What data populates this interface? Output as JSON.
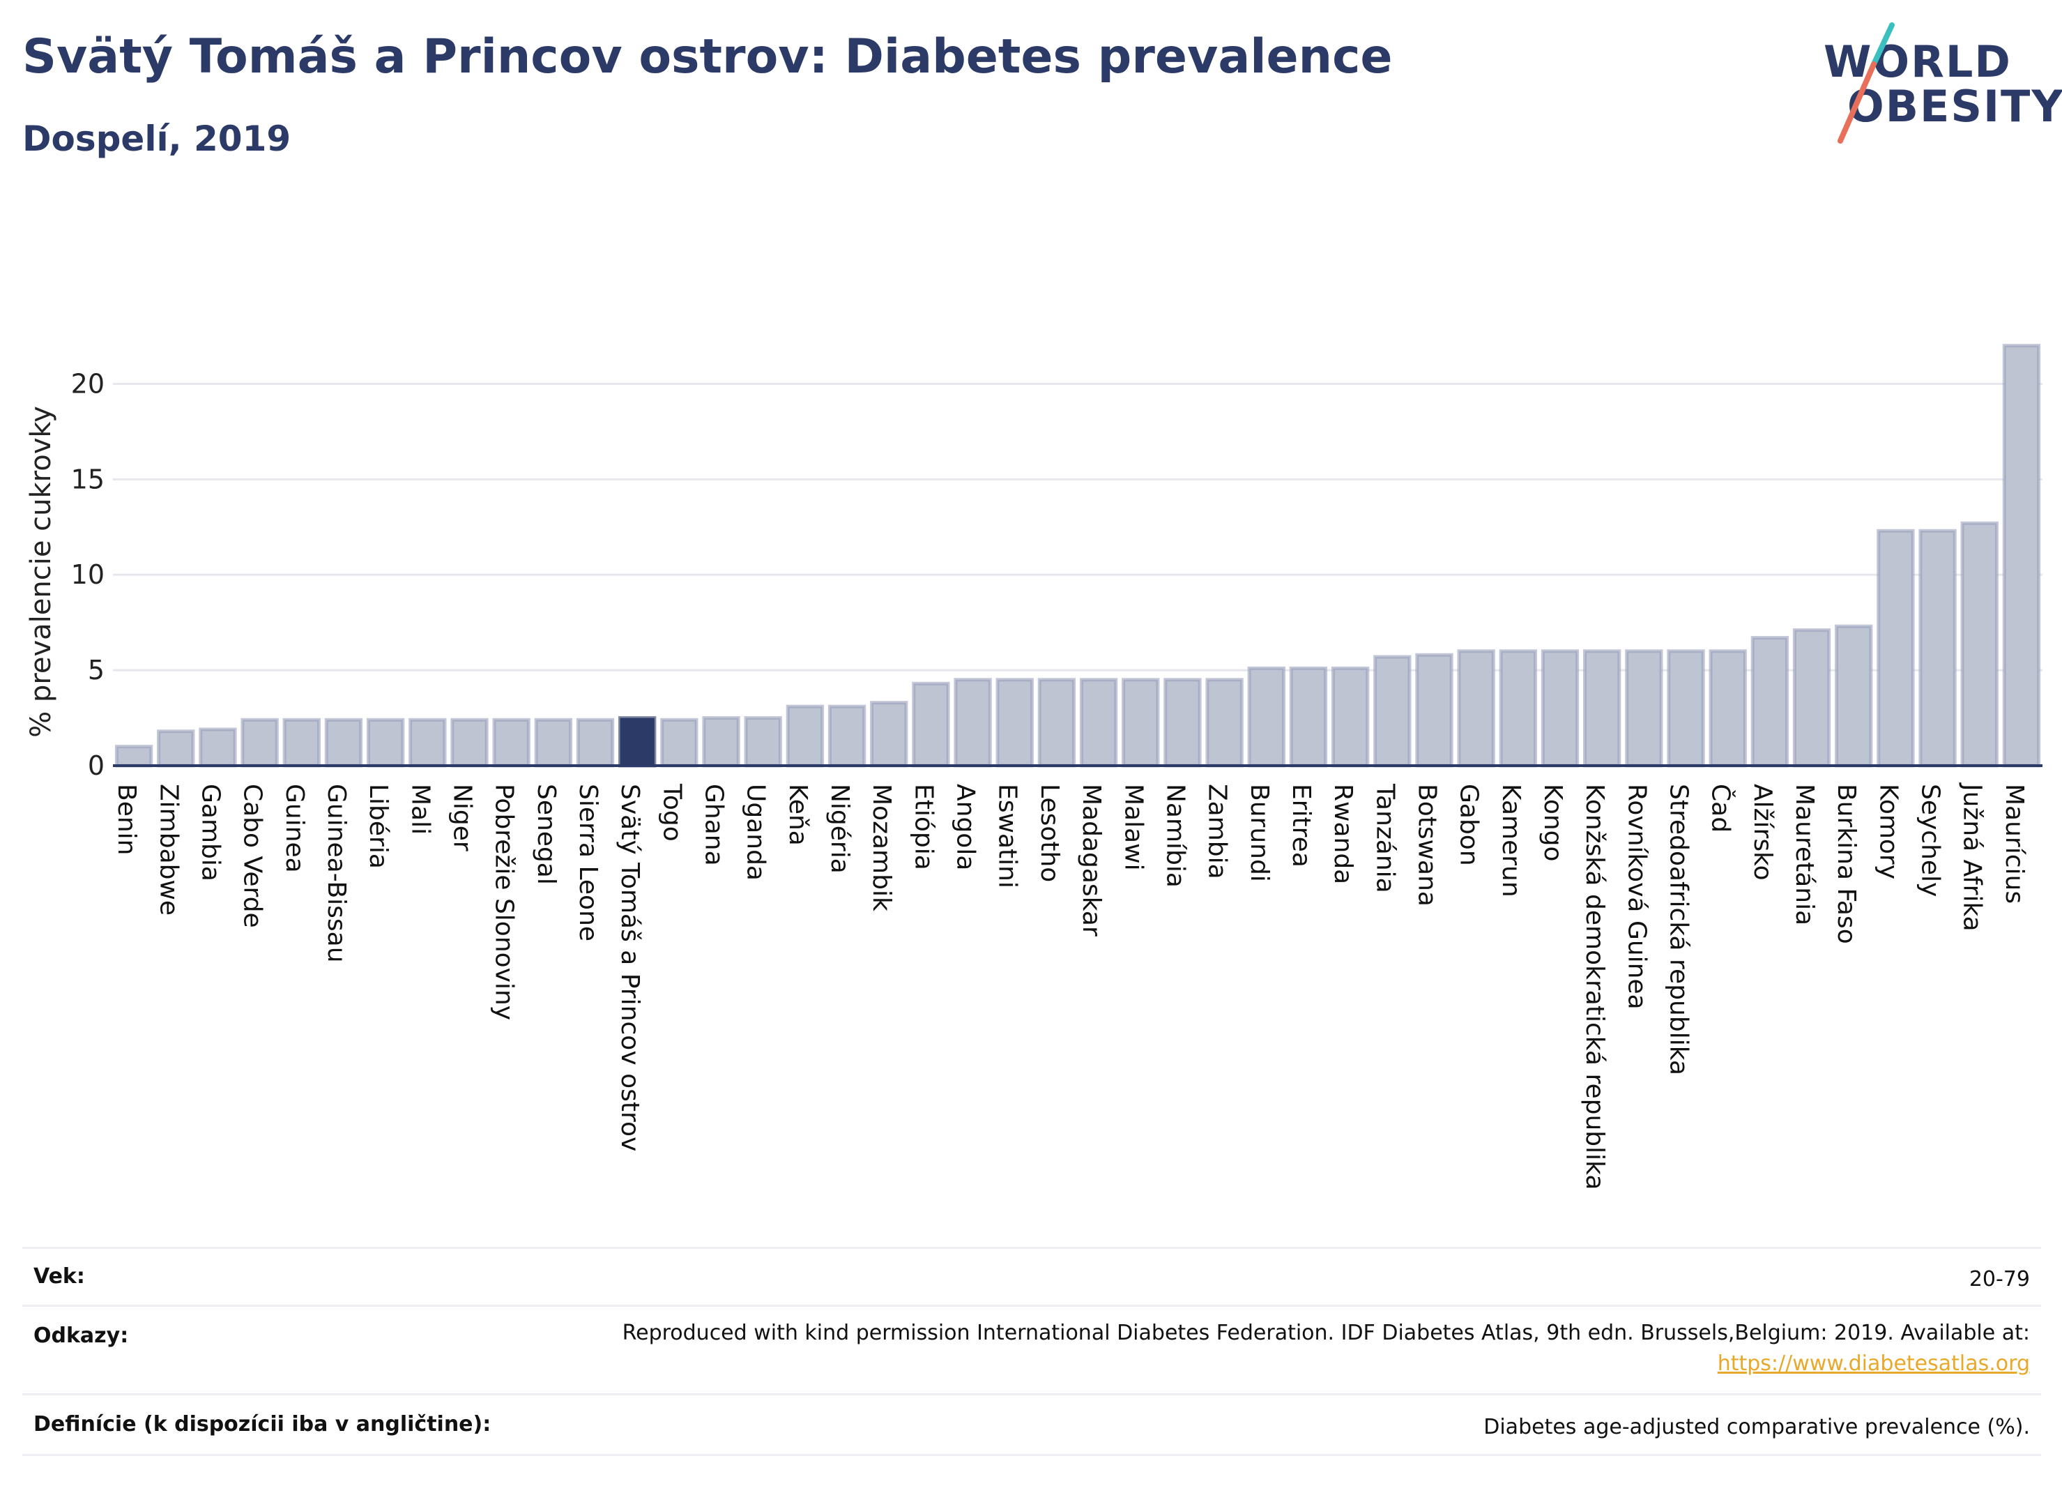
{
  "header": {
    "title": "Svätý Tomáš a Princov ostrov: Diabetes prevalence",
    "subtitle": "Dospelí, 2019"
  },
  "logo": {
    "line1": "WORLD",
    "line2": "OBESITY",
    "colors": {
      "text": "#2b3a67",
      "slash_top": "#3bbfbf",
      "slash_bottom": "#e8705a"
    }
  },
  "chart_data": {
    "type": "bar",
    "ylabel": "% prevalencie cukrovky",
    "ylim": [
      0,
      22.5
    ],
    "yticks": [
      0,
      5,
      10,
      15,
      20
    ],
    "grid": true,
    "highlight": "Svätý Tomáš a Princov ostrov",
    "colors": {
      "bar": "#bfc4d3",
      "bar_edge": "#9aa0bb",
      "highlight": "#2b3a67",
      "grid": "#e6e8ee",
      "axis": "#2b3a67"
    },
    "categories": [
      "Benin",
      "Zimbabwe",
      "Gambia",
      "Cabo Verde",
      "Guinea",
      "Guinea-Bissau",
      "Libéria",
      "Mali",
      "Niger",
      "Pobrežie Slonoviny",
      "Senegal",
      "Sierra Leone",
      "Svätý Tomáš a Princov ostrov",
      "Togo",
      "Ghana",
      "Uganda",
      "Keňa",
      "Nigéria",
      "Mozambik",
      "Etiópia",
      "Angola",
      "Eswatini",
      "Lesotho",
      "Madagaskar",
      "Malawi",
      "Namíbia",
      "Zambia",
      "Burundi",
      "Eritrea",
      "Rwanda",
      "Tanzánia",
      "Botswana",
      "Gabon",
      "Kamerun",
      "Kongo",
      "Konžská demokratická republika",
      "Rovníková Guinea",
      "Stredoafrická republika",
      "Čad",
      "Alžírsko",
      "Mauretánia",
      "Burkina Faso",
      "Komory",
      "Seychely",
      "Južná Afrika",
      "Maurícius"
    ],
    "values": [
      1.0,
      1.8,
      1.9,
      2.4,
      2.4,
      2.4,
      2.4,
      2.4,
      2.4,
      2.4,
      2.4,
      2.4,
      2.5,
      2.4,
      2.5,
      2.5,
      3.1,
      3.1,
      3.3,
      4.3,
      4.5,
      4.5,
      4.5,
      4.5,
      4.5,
      4.5,
      4.5,
      5.1,
      5.1,
      5.1,
      5.7,
      5.8,
      6.0,
      6.0,
      6.0,
      6.0,
      6.0,
      6.0,
      6.0,
      6.7,
      7.1,
      7.3,
      12.3,
      12.3,
      12.7,
      22.0
    ]
  },
  "footer": {
    "age_label": "Vek:",
    "age_value": "20-79",
    "refs_label": "Odkazy:",
    "refs_text": "Reproduced with kind permission International Diabetes Federation. IDF Diabetes Atlas, 9th edn. Brussels,Belgium: 2019. Available at:",
    "refs_link": "https://www.diabetesatlas.org",
    "def_label": "Definície (k dispozícii iba v angličtine):",
    "def_value": "Diabetes age-adjusted comparative prevalence (%)."
  }
}
